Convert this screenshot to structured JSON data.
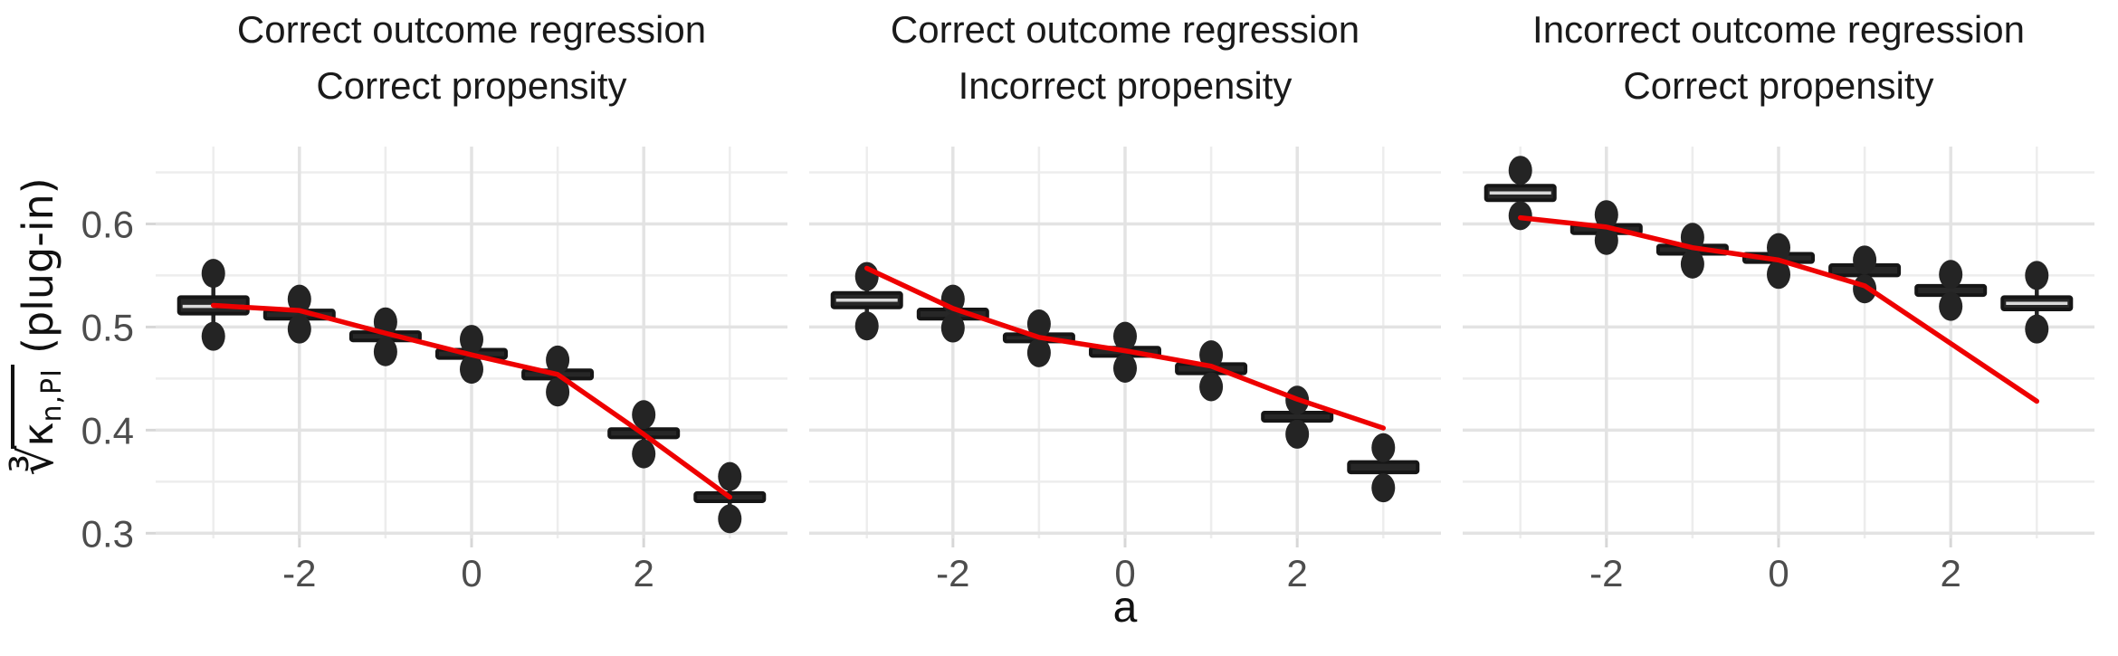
{
  "figure": {
    "background": "#ffffff",
    "x_axis_label": "a",
    "y_axis_label": {
      "cbrt_glyph": "∛",
      "radicand": "κ",
      "radicand_subscript": "n,PI",
      "suffix": "(plug-in)"
    },
    "axes": {
      "xlim": [
        -3.67,
        3.67
      ],
      "ylim": [
        0.295,
        0.675
      ],
      "x_ticks": [
        -2,
        0,
        2
      ],
      "x_tick_labels": [
        "-2",
        "0",
        "2"
      ],
      "x_minor": [
        -3,
        -1,
        1,
        3
      ],
      "y_ticks": [
        0.6,
        0.5,
        0.4,
        0.3
      ],
      "y_tick_labels": [
        "0.6",
        "0.5",
        "0.4",
        "0.3"
      ],
      "y_minor": [
        0.65,
        0.55,
        0.45,
        0.35
      ],
      "grid": true,
      "legend": "none"
    },
    "colors": {
      "grid_major": "#e3e3e3",
      "grid_minor": "#ededed",
      "tick_mark": "#d7d7d7",
      "tick_text": "#4d4d4d",
      "title_text": "#1a1a1a",
      "box_fill": "#272727",
      "box_stroke": "#161616",
      "whisker": "#242424",
      "outlier": "#242424",
      "median_line": "#d9d9d9",
      "red_line": "#ee0000"
    }
  },
  "chart_data": [
    {
      "type": "boxplot+line",
      "title_line1": "Correct outcome regression",
      "title_line2": "Correct propensity",
      "xlabel": "a",
      "x": [
        -3,
        -2,
        -1,
        0,
        1,
        2,
        3
      ],
      "boxes": [
        {
          "a": -3,
          "median": 0.52,
          "q1": 0.513,
          "q3": 0.529,
          "whisker_low": 0.5,
          "whisker_high": 0.545,
          "outlier_high": 0.552,
          "outlier_low": 0.491
        },
        {
          "a": -2,
          "median": 0.512,
          "q1": 0.508,
          "q3": 0.516,
          "whisker_low": 0.503,
          "whisker_high": 0.521,
          "outlier_high": 0.527,
          "outlier_low": 0.498
        },
        {
          "a": -1,
          "median": 0.491,
          "q1": 0.487,
          "q3": 0.495,
          "whisker_low": 0.481,
          "whisker_high": 0.5,
          "outlier_high": 0.505,
          "outlier_low": 0.476
        },
        {
          "a": 0,
          "median": 0.474,
          "q1": 0.47,
          "q3": 0.478,
          "whisker_low": 0.464,
          "whisker_high": 0.483,
          "outlier_high": 0.488,
          "outlier_low": 0.459
        },
        {
          "a": 1,
          "median": 0.454,
          "q1": 0.45,
          "q3": 0.458,
          "whisker_low": 0.443,
          "whisker_high": 0.463,
          "outlier_high": 0.468,
          "outlier_low": 0.437
        },
        {
          "a": 2,
          "median": 0.397,
          "q1": 0.393,
          "q3": 0.401,
          "whisker_low": 0.383,
          "whisker_high": 0.409,
          "outlier_high": 0.415,
          "outlier_low": 0.377
        },
        {
          "a": 3,
          "median": 0.335,
          "q1": 0.331,
          "q3": 0.339,
          "whisker_low": 0.32,
          "whisker_high": 0.349,
          "outlier_high": 0.355,
          "outlier_low": 0.314
        }
      ],
      "red_line": [
        0.521,
        0.516,
        0.494,
        0.473,
        0.454,
        0.396,
        0.335
      ]
    },
    {
      "type": "boxplot+line",
      "title_line1": "Correct outcome regression",
      "title_line2": "Incorrect propensity",
      "xlabel": "a",
      "x": [
        -3,
        -2,
        -1,
        0,
        1,
        2,
        3
      ],
      "boxes": [
        {
          "a": -3,
          "median": 0.526,
          "q1": 0.519,
          "q3": 0.533,
          "whisker_low": 0.507,
          "whisker_high": 0.543,
          "outlier_high": 0.549,
          "outlier_low": 0.501
        },
        {
          "a": -2,
          "median": 0.512,
          "q1": 0.508,
          "q3": 0.517,
          "whisker_low": 0.504,
          "whisker_high": 0.522,
          "outlier_high": 0.527,
          "outlier_low": 0.499
        },
        {
          "a": -1,
          "median": 0.49,
          "q1": 0.486,
          "q3": 0.493,
          "whisker_low": 0.48,
          "whisker_high": 0.498,
          "outlier_high": 0.503,
          "outlier_low": 0.475
        },
        {
          "a": 0,
          "median": 0.476,
          "q1": 0.472,
          "q3": 0.48,
          "whisker_low": 0.465,
          "whisker_high": 0.486,
          "outlier_high": 0.491,
          "outlier_low": 0.46
        },
        {
          "a": 1,
          "median": 0.46,
          "q1": 0.455,
          "q3": 0.464,
          "whisker_low": 0.447,
          "whisker_high": 0.468,
          "outlier_high": 0.473,
          "outlier_low": 0.442
        },
        {
          "a": 2,
          "median": 0.413,
          "q1": 0.409,
          "q3": 0.417,
          "whisker_low": 0.401,
          "whisker_high": 0.424,
          "outlier_high": 0.429,
          "outlier_low": 0.396
        },
        {
          "a": 3,
          "median": 0.364,
          "q1": 0.359,
          "q3": 0.369,
          "whisker_low": 0.35,
          "whisker_high": 0.377,
          "outlier_high": 0.383,
          "outlier_low": 0.344
        }
      ],
      "red_line": [
        0.557,
        0.518,
        0.49,
        0.477,
        0.462,
        0.43,
        0.402
      ]
    },
    {
      "type": "boxplot+line",
      "title_line1": "Incorrect outcome regression",
      "title_line2": "Correct propensity",
      "xlabel": "a",
      "x": [
        -3,
        -2,
        -1,
        0,
        1,
        2,
        3
      ],
      "boxes": [
        {
          "a": -3,
          "median": 0.63,
          "q1": 0.623,
          "q3": 0.637,
          "whisker_low": 0.613,
          "whisker_high": 0.646,
          "outlier_high": 0.652,
          "outlier_low": 0.608
        },
        {
          "a": -2,
          "median": 0.595,
          "q1": 0.591,
          "q3": 0.599,
          "whisker_low": 0.588,
          "whisker_high": 0.604,
          "outlier_high": 0.609,
          "outlier_low": 0.584
        },
        {
          "a": -1,
          "median": 0.575,
          "q1": 0.571,
          "q3": 0.579,
          "whisker_low": 0.566,
          "whisker_high": 0.583,
          "outlier_high": 0.587,
          "outlier_low": 0.561
        },
        {
          "a": 0,
          "median": 0.567,
          "q1": 0.563,
          "q3": 0.571,
          "whisker_low": 0.557,
          "whisker_high": 0.573,
          "outlier_high": 0.577,
          "outlier_low": 0.551
        },
        {
          "a": 1,
          "median": 0.555,
          "q1": 0.55,
          "q3": 0.56,
          "whisker_low": 0.543,
          "whisker_high": 0.561,
          "outlier_high": 0.565,
          "outlier_low": 0.537
        },
        {
          "a": 2,
          "median": 0.536,
          "q1": 0.531,
          "q3": 0.54,
          "whisker_low": 0.525,
          "whisker_high": 0.546,
          "outlier_high": 0.551,
          "outlier_low": 0.52
        },
        {
          "a": 3,
          "median": 0.523,
          "q1": 0.517,
          "q3": 0.529,
          "whisker_low": 0.504,
          "whisker_high": 0.544,
          "outlier_high": 0.55,
          "outlier_low": 0.498
        }
      ],
      "red_line": [
        0.606,
        0.597,
        0.577,
        0.565,
        0.54,
        0.484,
        0.428
      ]
    }
  ]
}
